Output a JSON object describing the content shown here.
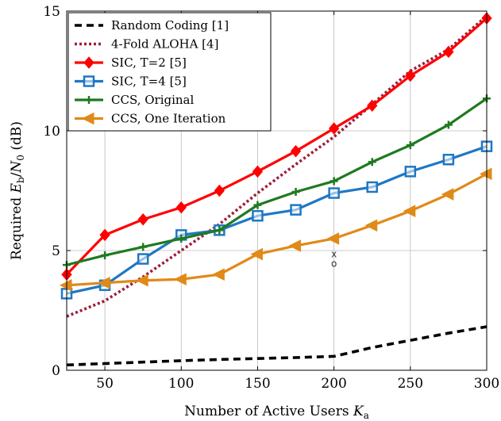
{
  "chart_data": {
    "type": "line",
    "xlabel": "Number of Active Users K_a",
    "xlabel_main": "Number of Active Users ",
    "xlabel_sym": "K",
    "xlabel_sub": "a",
    "ylabel": "Required E_b/N_0 (dB)",
    "ylabel_pre": "Required ",
    "ylabel_sym1": "E",
    "ylabel_sub1": "b",
    "ylabel_slash": "/",
    "ylabel_sym2": "N",
    "ylabel_sub2": "0",
    "ylabel_post": " (dB)",
    "xlim": [
      25,
      300
    ],
    "ylim": [
      0,
      15
    ],
    "xticks": [
      50,
      100,
      150,
      200,
      250,
      300
    ],
    "yticks": [
      0,
      5,
      10,
      15
    ],
    "grid": true,
    "legend_position": "top-left",
    "annotations": [
      {
        "text": "x",
        "x": 200,
        "y": 4.85
      },
      {
        "text": "o",
        "x": 200,
        "y": 4.45
      }
    ],
    "series": [
      {
        "name": "Random Coding [1]",
        "color": "#000000",
        "dash": "dashed",
        "marker": "none",
        "x": [
          25,
          50,
          75,
          100,
          125,
          150,
          175,
          200,
          225,
          250,
          275,
          300
        ],
        "y": [
          0.22,
          0.28,
          0.34,
          0.4,
          0.45,
          0.49,
          0.53,
          0.58,
          0.95,
          1.25,
          1.55,
          1.82
        ]
      },
      {
        "name": "4-Fold ALOHA [4]",
        "color": "#9e1f3d",
        "dash": "dotted",
        "marker": "none",
        "x": [
          25,
          50,
          75,
          100,
          125,
          150,
          175,
          200,
          225,
          250,
          275,
          300
        ],
        "y": [
          2.25,
          2.9,
          3.9,
          5.0,
          6.1,
          7.4,
          8.6,
          9.75,
          11.1,
          12.5,
          13.4,
          14.8
        ]
      },
      {
        "name": "SIC, T=2 [5]",
        "color": "#ff0000",
        "dash": "solid",
        "marker": "diamond",
        "x": [
          25,
          50,
          75,
          100,
          125,
          150,
          175,
          200,
          225,
          250,
          275,
          300
        ],
        "y": [
          4.0,
          5.65,
          6.3,
          6.8,
          7.5,
          8.3,
          9.15,
          10.1,
          11.05,
          12.3,
          13.3,
          14.7
        ]
      },
      {
        "name": "SIC, T=4 [5]",
        "color": "#1f77c4",
        "dash": "solid",
        "marker": "square",
        "x": [
          25,
          50,
          75,
          100,
          125,
          150,
          175,
          200,
          225,
          250,
          275,
          300
        ],
        "y": [
          3.2,
          3.55,
          4.65,
          5.65,
          5.85,
          6.45,
          6.7,
          7.4,
          7.65,
          8.3,
          8.8,
          9.35
        ]
      },
      {
        "name": "CCS, Original",
        "color": "#1f7a1f",
        "dash": "solid",
        "marker": "plus",
        "x": [
          25,
          50,
          75,
          100,
          125,
          150,
          175,
          200,
          225,
          250,
          275,
          300
        ],
        "y": [
          4.4,
          4.8,
          5.15,
          5.5,
          5.85,
          6.9,
          7.45,
          7.9,
          8.7,
          9.4,
          10.25,
          11.35
        ]
      },
      {
        "name": "CCS, One Iteration",
        "color": "#e08a17",
        "dash": "solid",
        "marker": "triangle-left",
        "x": [
          25,
          50,
          75,
          100,
          125,
          150,
          175,
          200,
          225,
          250,
          275,
          300
        ],
        "y": [
          3.55,
          3.65,
          3.75,
          3.8,
          4.0,
          4.85,
          5.2,
          5.5,
          6.05,
          6.65,
          7.35,
          8.2
        ]
      }
    ]
  }
}
